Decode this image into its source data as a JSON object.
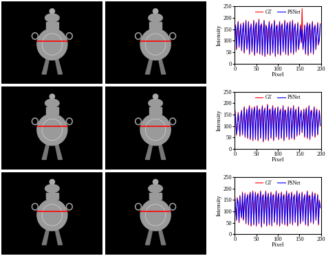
{
  "chart_data": [
    {
      "type": "line",
      "x_label": "Pixel",
      "y_label": "Intensity",
      "xlim": [
        0,
        200
      ],
      "ylim": [
        0,
        250
      ],
      "xticks": [
        0,
        50,
        100,
        150,
        200
      ],
      "yticks": [
        0,
        50,
        100,
        150,
        200,
        250
      ],
      "legend": "upper center",
      "x": [
        0,
        2,
        4,
        6,
        8,
        10,
        12,
        14,
        16,
        18,
        20,
        22,
        24,
        26,
        28,
        30,
        32,
        34,
        36,
        38,
        40,
        42,
        44,
        46,
        48,
        50,
        52,
        54,
        56,
        58,
        60,
        62,
        64,
        66,
        68,
        70,
        72,
        74,
        76,
        78,
        80,
        82,
        84,
        86,
        88,
        90,
        92,
        94,
        96,
        98,
        100,
        102,
        104,
        106,
        108,
        110,
        112,
        114,
        116,
        118,
        120,
        122,
        124,
        126,
        128,
        130,
        132,
        134,
        136,
        138,
        140,
        142,
        144,
        146,
        148,
        150,
        152,
        154,
        156,
        158,
        160,
        162,
        164,
        166,
        168,
        170,
        172,
        174,
        176,
        178,
        180,
        182,
        184,
        186,
        188,
        190,
        192,
        194,
        196,
        198
      ],
      "series": [
        {
          "name": "GT",
          "color": "#ff0000",
          "values": [
            120,
            170,
            60,
            150,
            185,
            70,
            130,
            175,
            55,
            140,
            180,
            45,
            120,
            190,
            60,
            110,
            185,
            40,
            150,
            175,
            50,
            130,
            190,
            35,
            160,
            180,
            45,
            120,
            195,
            40,
            165,
            175,
            35,
            140,
            190,
            30,
            170,
            160,
            40,
            150,
            185,
            35,
            155,
            175,
            45,
            130,
            190,
            30,
            160,
            170,
            40,
            145,
            185,
            35,
            165,
            175,
            50,
            130,
            190,
            40,
            160,
            180,
            35,
            150,
            185,
            45,
            135,
            190,
            40,
            155,
            175,
            50,
            125,
            180,
            60,
            110,
            170,
            90,
            240,
            60,
            95,
            170,
            40,
            150,
            180,
            35,
            160,
            175,
            45,
            140,
            185,
            40,
            155,
            170,
            60,
            130,
            180,
            80,
            110,
            175
          ]
        },
        {
          "name": "PSNet",
          "color": "#0000ff",
          "values": [
            115,
            165,
            65,
            145,
            180,
            75,
            125,
            170,
            60,
            135,
            175,
            50,
            125,
            185,
            65,
            105,
            180,
            45,
            145,
            170,
            55,
            125,
            185,
            40,
            155,
            175,
            50,
            115,
            190,
            45,
            160,
            170,
            40,
            135,
            185,
            35,
            165,
            155,
            45,
            145,
            180,
            40,
            150,
            170,
            50,
            125,
            185,
            35,
            155,
            165,
            45,
            140,
            180,
            40,
            160,
            170,
            55,
            125,
            185,
            45,
            155,
            175,
            40,
            145,
            180,
            50,
            130,
            185,
            45,
            150,
            170,
            55,
            120,
            175,
            65,
            105,
            165,
            95,
            150,
            65,
            100,
            165,
            45,
            145,
            175,
            40,
            155,
            170,
            50,
            135,
            180,
            45,
            150,
            165,
            65,
            125,
            175,
            85,
            105,
            170
          ]
        }
      ]
    },
    {
      "type": "line",
      "x_label": "Pixel",
      "y_label": "Intensity",
      "xlim": [
        0,
        200
      ],
      "ylim": [
        0,
        250
      ],
      "xticks": [
        0,
        50,
        100,
        150,
        200
      ],
      "yticks": [
        0,
        50,
        100,
        150,
        200,
        250
      ],
      "legend": "upper center",
      "x": [
        0,
        2,
        4,
        6,
        8,
        10,
        12,
        14,
        16,
        18,
        20,
        22,
        24,
        26,
        28,
        30,
        32,
        34,
        36,
        38,
        40,
        42,
        44,
        46,
        48,
        50,
        52,
        54,
        56,
        58,
        60,
        62,
        64,
        66,
        68,
        70,
        72,
        74,
        76,
        78,
        80,
        82,
        84,
        86,
        88,
        90,
        92,
        94,
        96,
        98,
        100,
        102,
        104,
        106,
        108,
        110,
        112,
        114,
        116,
        118,
        120,
        122,
        124,
        126,
        128,
        130,
        132,
        134,
        136,
        138,
        140,
        142,
        144,
        146,
        148,
        150,
        152,
        154,
        156,
        158,
        160,
        162,
        164,
        166,
        168,
        170,
        172,
        174,
        176,
        178,
        180,
        182,
        184,
        186,
        188,
        190,
        192,
        194,
        196,
        198
      ],
      "series": [
        {
          "name": "GT",
          "color": "#ff0000",
          "values": [
            180,
            140,
            60,
            90,
            160,
            120,
            55,
            150,
            170,
            60,
            130,
            185,
            50,
            140,
            175,
            45,
            160,
            190,
            40,
            150,
            180,
            35,
            165,
            185,
            40,
            145,
            190,
            35,
            170,
            175,
            45,
            150,
            190,
            30,
            165,
            180,
            40,
            140,
            195,
            35,
            170,
            175,
            45,
            150,
            190,
            35,
            165,
            180,
            50,
            140,
            185,
            40,
            160,
            175,
            45,
            135,
            190,
            35,
            170,
            170,
            50,
            145,
            185,
            40,
            160,
            180,
            45,
            130,
            190,
            40,
            165,
            175,
            55,
            120,
            185,
            60,
            150,
            170,
            70,
            130,
            175,
            50,
            160,
            180,
            45,
            140,
            190,
            40,
            165,
            170,
            55,
            145,
            185,
            50,
            150,
            175,
            60,
            120,
            170,
            100
          ]
        },
        {
          "name": "PSNet",
          "color": "#0000ff",
          "values": [
            175,
            135,
            65,
            95,
            155,
            115,
            60,
            145,
            165,
            65,
            125,
            180,
            55,
            135,
            170,
            50,
            155,
            185,
            45,
            145,
            175,
            40,
            160,
            180,
            45,
            140,
            185,
            40,
            165,
            170,
            50,
            145,
            185,
            35,
            160,
            175,
            45,
            135,
            190,
            40,
            165,
            170,
            50,
            145,
            185,
            40,
            160,
            175,
            55,
            135,
            180,
            45,
            155,
            170,
            50,
            130,
            185,
            40,
            165,
            165,
            55,
            140,
            180,
            45,
            155,
            175,
            50,
            125,
            185,
            45,
            160,
            170,
            60,
            115,
            180,
            65,
            145,
            165,
            75,
            125,
            170,
            55,
            155,
            175,
            50,
            135,
            185,
            45,
            160,
            165,
            60,
            140,
            180,
            55,
            145,
            170,
            65,
            115,
            165,
            105
          ]
        }
      ]
    },
    {
      "type": "line",
      "x_label": "Pixel",
      "y_label": "Intensity",
      "xlim": [
        0,
        200
      ],
      "ylim": [
        0,
        250
      ],
      "xticks": [
        0,
        50,
        100,
        150,
        200
      ],
      "yticks": [
        0,
        50,
        100,
        150,
        200,
        250
      ],
      "legend": "upper center",
      "x": [
        0,
        2,
        4,
        6,
        8,
        10,
        12,
        14,
        16,
        18,
        20,
        22,
        24,
        26,
        28,
        30,
        32,
        34,
        36,
        38,
        40,
        42,
        44,
        46,
        48,
        50,
        52,
        54,
        56,
        58,
        60,
        62,
        64,
        66,
        68,
        70,
        72,
        74,
        76,
        78,
        80,
        82,
        84,
        86,
        88,
        90,
        92,
        94,
        96,
        98,
        100,
        102,
        104,
        106,
        108,
        110,
        112,
        114,
        116,
        118,
        120,
        122,
        124,
        126,
        128,
        130,
        132,
        134,
        136,
        138,
        140,
        142,
        144,
        146,
        148,
        150,
        152,
        154,
        156,
        158,
        160,
        162,
        164,
        166,
        168,
        170,
        172,
        174,
        176,
        178,
        180,
        182,
        184,
        186,
        188,
        190,
        192,
        194,
        196,
        198
      ],
      "series": [
        {
          "name": "GT",
          "color": "#ff0000",
          "values": [
            175,
            120,
            60,
            160,
            140,
            50,
            170,
            110,
            70,
            185,
            60,
            130,
            180,
            45,
            155,
            175,
            40,
            165,
            185,
            35,
            150,
            190,
            40,
            140,
            185,
            35,
            170,
            180,
            45,
            150,
            190,
            30,
            165,
            175,
            45,
            145,
            190,
            35,
            160,
            180,
            40,
            150,
            185,
            35,
            170,
            175,
            50,
            140,
            190,
            40,
            160,
            180,
            35,
            150,
            185,
            45,
            165,
            175,
            40,
            140,
            190,
            35,
            170,
            180,
            45,
            150,
            185,
            40,
            160,
            175,
            50,
            140,
            190,
            35,
            165,
            180,
            45,
            130,
            185,
            55,
            155,
            175,
            40,
            150,
            190,
            35,
            170,
            170,
            50,
            140,
            185,
            45,
            160,
            180,
            60,
            130,
            175,
            40,
            150,
            120
          ]
        },
        {
          "name": "PSNet",
          "color": "#0000ff",
          "values": [
            170,
            115,
            65,
            155,
            135,
            55,
            165,
            105,
            75,
            180,
            65,
            125,
            175,
            50,
            150,
            170,
            45,
            160,
            180,
            40,
            145,
            185,
            45,
            135,
            180,
            40,
            165,
            175,
            50,
            145,
            185,
            35,
            160,
            170,
            50,
            140,
            185,
            40,
            155,
            175,
            45,
            145,
            180,
            40,
            165,
            170,
            55,
            135,
            185,
            45,
            155,
            175,
            40,
            145,
            180,
            50,
            160,
            170,
            45,
            135,
            185,
            40,
            165,
            175,
            50,
            145,
            180,
            45,
            155,
            170,
            55,
            135,
            185,
            40,
            160,
            175,
            50,
            125,
            180,
            60,
            150,
            170,
            45,
            145,
            185,
            40,
            165,
            165,
            55,
            135,
            180,
            50,
            155,
            175,
            65,
            125,
            170,
            45,
            145,
            115
          ]
        }
      ]
    }
  ]
}
